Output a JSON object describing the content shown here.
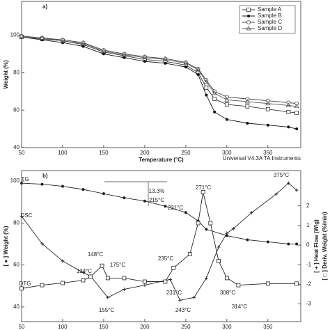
{
  "chart_data": [
    {
      "type": "line",
      "label": "a)",
      "ylabel": "Weight (%)",
      "xlabel": "Temperature (°C)",
      "note": "Universal V4.3A TA Instruments",
      "xlim": [
        50,
        390
      ],
      "xticks": [
        50,
        100,
        150,
        200,
        250,
        300,
        350
      ],
      "ylim": [
        40,
        118
      ],
      "yticks": [
        40,
        60,
        80,
        100
      ],
      "grid": false,
      "legend": "upper right",
      "series": [
        {
          "name": "Sample A",
          "color": "#333333",
          "marker": "square",
          "x": [
            50,
            75,
            100,
            125,
            150,
            175,
            200,
            225,
            250,
            265,
            275,
            285,
            300,
            325,
            350,
            375,
            385
          ],
          "values": [
            99,
            98,
            97,
            95,
            91,
            89,
            87,
            86,
            84,
            80,
            72,
            66,
            63,
            62,
            60.5,
            59,
            58.5
          ]
        },
        {
          "name": "Sample B",
          "color": "#111111",
          "marker": "dot",
          "x": [
            50,
            75,
            100,
            125,
            150,
            175,
            200,
            225,
            250,
            265,
            275,
            285,
            300,
            325,
            350,
            375,
            385
          ],
          "values": [
            99,
            97.5,
            96,
            94,
            90,
            88,
            86,
            85,
            83,
            79,
            68,
            59,
            55,
            53,
            52,
            51,
            50
          ]
        },
        {
          "name": "Sample C",
          "color": "#444444",
          "marker": "open-circle",
          "x": [
            50,
            75,
            100,
            125,
            150,
            175,
            200,
            225,
            250,
            265,
            275,
            285,
            300,
            325,
            350,
            375,
            385
          ],
          "values": [
            99.5,
            98.5,
            97.5,
            96,
            92,
            90,
            88.5,
            87.5,
            85.5,
            82,
            76,
            70,
            67,
            66,
            65,
            64,
            63.5
          ]
        },
        {
          "name": "Sample D",
          "color": "#555555",
          "marker": "tri",
          "x": [
            50,
            75,
            100,
            125,
            150,
            175,
            200,
            225,
            250,
            265,
            275,
            285,
            300,
            325,
            350,
            375,
            385
          ],
          "values": [
            99.5,
            98.5,
            97,
            95.5,
            91.5,
            89.5,
            88,
            87,
            85,
            81.5,
            75,
            69,
            65.5,
            64.5,
            63.5,
            62.5,
            62
          ]
        }
      ]
    },
    {
      "type": "line",
      "label": "b)",
      "ylabel": "[ ● ] Weight (%)",
      "y2label": "[ + ] Heat Flow (W/g)",
      "y3label": "[ □ ] Deriv. Weight (%/min)",
      "xlim": [
        50,
        390
      ],
      "xticks": [
        50,
        100,
        150,
        200,
        250,
        300,
        350
      ],
      "ylim": [
        33,
        105
      ],
      "yticks": [
        40,
        60,
        80,
        100
      ],
      "y2lim": [
        -3.9,
        3.8
      ],
      "y2ticks": [
        -3,
        -2,
        -1,
        0,
        1,
        2
      ],
      "grid": false,
      "annotations": [
        "TG",
        "DSC",
        "DTG",
        "13.3%",
        "215°C",
        "231°C",
        "271°C",
        "375°C",
        "148°C",
        "175°C",
        "134°C",
        "235°C",
        "308°C",
        "314°C",
        "155°C",
        "231°C",
        "243°C"
      ],
      "series": [
        {
          "name": "TG",
          "color": "#222222",
          "marker": "dot",
          "x": [
            50,
            75,
            100,
            125,
            150,
            175,
            200,
            225,
            250,
            265,
            275,
            300,
            325,
            350,
            375,
            385
          ],
          "values": [
            99,
            98.5,
            97.5,
            96,
            94,
            92,
            90.5,
            88,
            85,
            81,
            77,
            74,
            72,
            71,
            70,
            70
          ]
        },
        {
          "name": "DSC",
          "color": "#222222",
          "marker": "plus",
          "axis": "y2",
          "x": [
            50,
            75,
            100,
            125,
            134,
            155,
            175,
            200,
            231,
            243,
            260,
            275,
            290,
            300,
            308,
            330,
            360,
            375,
            385
          ],
          "values": [
            1.47,
            0.07,
            -0.81,
            -1.4,
            -1.58,
            -2.67,
            -2.25,
            -2.04,
            -1.75,
            -2.81,
            -2.67,
            -1.68,
            -0.1,
            0.6,
            0.84,
            1.65,
            2.6,
            3.16,
            2.8
          ]
        },
        {
          "name": "DTG",
          "color": "#222222",
          "marker": "square",
          "axis": "y2",
          "x": [
            50,
            75,
            100,
            125,
            134,
            148,
            155,
            175,
            200,
            225,
            235,
            255,
            265,
            271,
            280,
            290,
            300,
            314,
            350,
            385
          ],
          "values": [
            -2.21,
            -2.04,
            -1.93,
            -1.79,
            -1.61,
            -1.05,
            -1.68,
            -1.68,
            -1.86,
            -1.86,
            -1.16,
            -0.46,
            1.12,
            2.7,
            1.12,
            -0.81,
            -1.68,
            -2.04,
            -1.96,
            -1.96
          ]
        }
      ]
    }
  ]
}
